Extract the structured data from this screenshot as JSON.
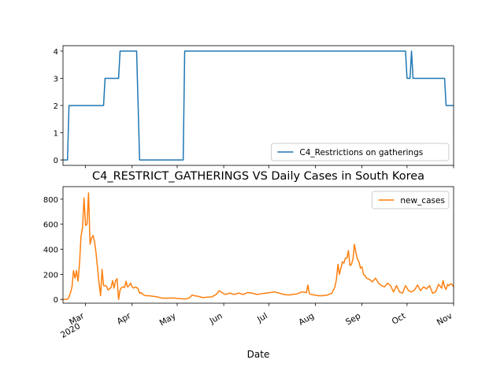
{
  "chart_data": [
    {
      "type": "line",
      "title": "",
      "xlabel": "",
      "ylabel": "",
      "ylim": [
        -0.2,
        4.2
      ],
      "yticks": [
        0,
        1,
        2,
        3,
        4
      ],
      "xlim": [
        "2020-02-15",
        "2020-11-01"
      ],
      "grid": false,
      "legend": {
        "position": "lower-right",
        "entries": [
          "C4_Restrictions on gatherings"
        ]
      },
      "series": [
        {
          "name": "C4_Restrictions on gatherings",
          "color": "#1f77b4",
          "points": [
            [
              "2020-02-15",
              0
            ],
            [
              "2020-02-18",
              0
            ],
            [
              "2020-02-19",
              2
            ],
            [
              "2020-03-13",
              2
            ],
            [
              "2020-03-14",
              3
            ],
            [
              "2020-03-23",
              3
            ],
            [
              "2020-03-24",
              4
            ],
            [
              "2020-04-04",
              4
            ],
            [
              "2020-04-06",
              0
            ],
            [
              "2020-05-05",
              0
            ],
            [
              "2020-05-06",
              4
            ],
            [
              "2020-09-30",
              4
            ],
            [
              "2020-10-01",
              3
            ],
            [
              "2020-10-03",
              3
            ],
            [
              "2020-10-04",
              4
            ],
            [
              "2020-10-05",
              3
            ],
            [
              "2020-10-20",
              3
            ],
            [
              "2020-10-26",
              3
            ],
            [
              "2020-10-27",
              2
            ],
            [
              "2020-11-01",
              2
            ]
          ]
        }
      ]
    },
    {
      "type": "line",
      "title": "C4_RESTRICT_GATHERINGS VS Daily Cases in South Korea",
      "xlabel": "Date",
      "ylabel": "",
      "ylim": [
        -30,
        900
      ],
      "yticks": [
        0,
        200,
        400,
        600,
        800
      ],
      "xlim": [
        "2020-02-15",
        "2020-11-01"
      ],
      "xticks": [
        {
          "date": "2020-03-01",
          "label": "Mar",
          "sublabel": "2020"
        },
        {
          "date": "2020-04-01",
          "label": "Apr"
        },
        {
          "date": "2020-05-01",
          "label": "May"
        },
        {
          "date": "2020-06-01",
          "label": "Jun"
        },
        {
          "date": "2020-07-01",
          "label": "Jul"
        },
        {
          "date": "2020-08-01",
          "label": "Aug"
        },
        {
          "date": "2020-09-01",
          "label": "Sep"
        },
        {
          "date": "2020-10-01",
          "label": "Oct"
        },
        {
          "date": "2020-11-01",
          "label": "Nov"
        }
      ],
      "grid": false,
      "legend": {
        "position": "top-right",
        "entries": [
          "new_cases"
        ]
      },
      "series": [
        {
          "name": "new_cases",
          "color": "#ff7f0e",
          "points": [
            [
              "2020-02-15",
              0
            ],
            [
              "2020-02-17",
              1
            ],
            [
              "2020-02-18",
              2
            ],
            [
              "2020-02-19",
              20
            ],
            [
              "2020-02-20",
              55
            ],
            [
              "2020-02-21",
              100
            ],
            [
              "2020-02-22",
              230
            ],
            [
              "2020-02-23",
              170
            ],
            [
              "2020-02-24",
              230
            ],
            [
              "2020-02-25",
              145
            ],
            [
              "2020-02-26",
              285
            ],
            [
              "2020-02-27",
              505
            ],
            [
              "2020-02-28",
              570
            ],
            [
              "2020-02-29",
              810
            ],
            [
              "2020-03-01",
              590
            ],
            [
              "2020-03-02",
              600
            ],
            [
              "2020-03-03",
              850
            ],
            [
              "2020-03-04",
              440
            ],
            [
              "2020-03-05",
              490
            ],
            [
              "2020-03-06",
              510
            ],
            [
              "2020-03-07",
              460
            ],
            [
              "2020-03-08",
              370
            ],
            [
              "2020-03-09",
              250
            ],
            [
              "2020-03-10",
              130
            ],
            [
              "2020-03-11",
              30
            ],
            [
              "2020-03-12",
              240
            ],
            [
              "2020-03-13",
              110
            ],
            [
              "2020-03-14",
              110
            ],
            [
              "2020-03-15",
              105
            ],
            [
              "2020-03-16",
              75
            ],
            [
              "2020-03-17",
              85
            ],
            [
              "2020-03-18",
              95
            ],
            [
              "2020-03-19",
              150
            ],
            [
              "2020-03-20",
              90
            ],
            [
              "2020-03-21",
              150
            ],
            [
              "2020-03-22",
              165
            ],
            [
              "2020-03-23",
              0
            ],
            [
              "2020-03-24",
              75
            ],
            [
              "2020-03-25",
              95
            ],
            [
              "2020-03-26",
              100
            ],
            [
              "2020-03-27",
              95
            ],
            [
              "2020-03-28",
              145
            ],
            [
              "2020-03-29",
              100
            ],
            [
              "2020-03-30",
              110
            ],
            [
              "2020-03-31",
              130
            ],
            [
              "2020-04-01",
              100
            ],
            [
              "2020-04-02",
              90
            ],
            [
              "2020-04-03",
              100
            ],
            [
              "2020-04-04",
              95
            ],
            [
              "2020-04-05",
              85
            ],
            [
              "2020-04-06",
              50
            ],
            [
              "2020-04-07",
              55
            ],
            [
              "2020-04-08",
              40
            ],
            [
              "2020-04-10",
              30
            ],
            [
              "2020-04-12",
              30
            ],
            [
              "2020-04-15",
              25
            ],
            [
              "2020-04-18",
              20
            ],
            [
              "2020-04-21",
              10
            ],
            [
              "2020-04-25",
              10
            ],
            [
              "2020-04-28",
              12
            ],
            [
              "2020-05-01",
              8
            ],
            [
              "2020-05-04",
              5
            ],
            [
              "2020-05-07",
              4
            ],
            [
              "2020-05-09",
              12
            ],
            [
              "2020-05-11",
              35
            ],
            [
              "2020-05-13",
              28
            ],
            [
              "2020-05-15",
              25
            ],
            [
              "2020-05-18",
              15
            ],
            [
              "2020-05-21",
              18
            ],
            [
              "2020-05-24",
              20
            ],
            [
              "2020-05-27",
              40
            ],
            [
              "2020-05-29",
              70
            ],
            [
              "2020-05-30",
              60
            ],
            [
              "2020-06-02",
              40
            ],
            [
              "2020-06-05",
              50
            ],
            [
              "2020-06-08",
              40
            ],
            [
              "2020-06-11",
              50
            ],
            [
              "2020-06-14",
              40
            ],
            [
              "2020-06-17",
              55
            ],
            [
              "2020-06-20",
              50
            ],
            [
              "2020-06-23",
              40
            ],
            [
              "2020-06-26",
              45
            ],
            [
              "2020-06-29",
              50
            ],
            [
              "2020-07-02",
              55
            ],
            [
              "2020-07-05",
              60
            ],
            [
              "2020-07-08",
              50
            ],
            [
              "2020-07-11",
              40
            ],
            [
              "2020-07-14",
              35
            ],
            [
              "2020-07-17",
              40
            ],
            [
              "2020-07-20",
              45
            ],
            [
              "2020-07-23",
              60
            ],
            [
              "2020-07-26",
              55
            ],
            [
              "2020-07-27",
              115
            ],
            [
              "2020-07-28",
              45
            ],
            [
              "2020-07-31",
              35
            ],
            [
              "2020-08-03",
              30
            ],
            [
              "2020-08-06",
              30
            ],
            [
              "2020-08-09",
              35
            ],
            [
              "2020-08-12",
              50
            ],
            [
              "2020-08-14",
              100
            ],
            [
              "2020-08-15",
              160
            ],
            [
              "2020-08-16",
              280
            ],
            [
              "2020-08-17",
              200
            ],
            [
              "2020-08-18",
              250
            ],
            [
              "2020-08-19",
              300
            ],
            [
              "2020-08-20",
              290
            ],
            [
              "2020-08-21",
              330
            ],
            [
              "2020-08-22",
              330
            ],
            [
              "2020-08-23",
              390
            ],
            [
              "2020-08-24",
              270
            ],
            [
              "2020-08-25",
              280
            ],
            [
              "2020-08-26",
              320
            ],
            [
              "2020-08-27",
              440
            ],
            [
              "2020-08-28",
              370
            ],
            [
              "2020-08-29",
              320
            ],
            [
              "2020-08-30",
              300
            ],
            [
              "2020-08-31",
              250
            ],
            [
              "2020-09-01",
              260
            ],
            [
              "2020-09-02",
              200
            ],
            [
              "2020-09-03",
              190
            ],
            [
              "2020-09-04",
              170
            ],
            [
              "2020-09-06",
              160
            ],
            [
              "2020-09-08",
              140
            ],
            [
              "2020-09-10",
              170
            ],
            [
              "2020-09-12",
              130
            ],
            [
              "2020-09-14",
              110
            ],
            [
              "2020-09-16",
              100
            ],
            [
              "2020-09-18",
              130
            ],
            [
              "2020-09-20",
              110
            ],
            [
              "2020-09-22",
              60
            ],
            [
              "2020-09-24",
              110
            ],
            [
              "2020-09-26",
              60
            ],
            [
              "2020-09-28",
              50
            ],
            [
              "2020-09-30",
              110
            ],
            [
              "2020-10-02",
              70
            ],
            [
              "2020-10-04",
              60
            ],
            [
              "2020-10-06",
              75
            ],
            [
              "2020-10-08",
              115
            ],
            [
              "2020-10-10",
              70
            ],
            [
              "2020-10-12",
              100
            ],
            [
              "2020-10-14",
              85
            ],
            [
              "2020-10-16",
              110
            ],
            [
              "2020-10-18",
              50
            ],
            [
              "2020-10-20",
              60
            ],
            [
              "2020-10-22",
              120
            ],
            [
              "2020-10-24",
              90
            ],
            [
              "2020-10-25",
              150
            ],
            [
              "2020-10-26",
              100
            ],
            [
              "2020-10-27",
              80
            ],
            [
              "2020-10-28",
              120
            ],
            [
              "2020-10-29",
              110
            ],
            [
              "2020-10-30",
              125
            ],
            [
              "2020-10-31",
              120
            ],
            [
              "2020-11-01",
              100
            ]
          ]
        }
      ]
    }
  ]
}
